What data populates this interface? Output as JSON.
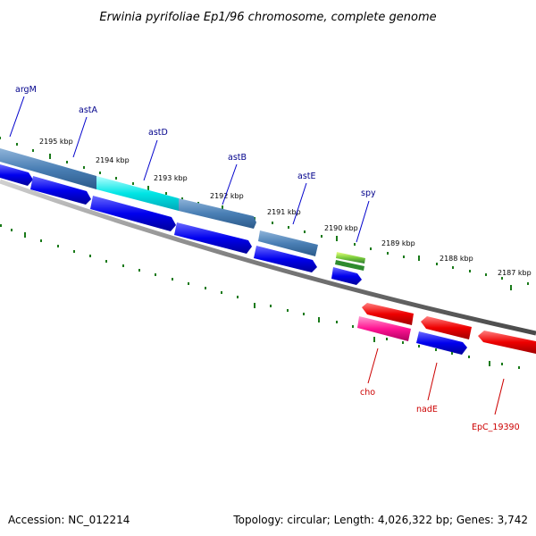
{
  "title": "Erwinia pyrifoliae Ep1/96 chromosome, complete genome",
  "footer": {
    "accession": "Accession: NC_012214",
    "summary": "Topology: circular; Length: 4,026,322 bp; Genes: 3,742"
  },
  "scale_labels": [
    "2195 kbp",
    "2194 kbp",
    "2193 kbp",
    "2192 kbp",
    "2191 kbp",
    "2190 kbp",
    "2189 kbp",
    "2188 kbp",
    "2187 kbp"
  ],
  "forward_genes": [
    {
      "name": "argM",
      "color": "#00008b"
    },
    {
      "name": "astA",
      "color": "#00008b"
    },
    {
      "name": "astD",
      "color": "#00008b"
    },
    {
      "name": "astB",
      "color": "#00008b"
    },
    {
      "name": "astE",
      "color": "#00008b"
    },
    {
      "name": "spy",
      "color": "#00008b"
    }
  ],
  "reverse_genes": [
    {
      "name": "cho",
      "color": "#cc0000"
    },
    {
      "name": "nadE",
      "color": "#cc0000"
    },
    {
      "name": "EpC_19390",
      "color": "#cc0000"
    }
  ],
  "colors": {
    "cog_track": "#4a7fb5",
    "cog_highlight": "#00e5e5",
    "forward_cds": "#0000ee",
    "reverse_cds": "#ee0000",
    "reverse_highlight": "#ff1493",
    "rna": "#7ccd3c",
    "backbone": "#808080",
    "ticks": "#1a7a1a"
  }
}
